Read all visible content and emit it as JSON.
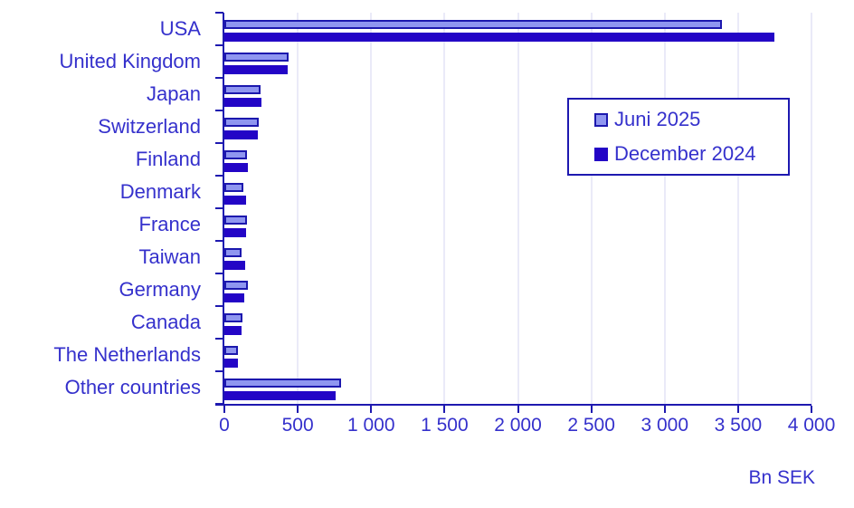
{
  "colors": {
    "background": "#FFFFFF",
    "series1_fill": "#8F96F0",
    "series1_border": "#1C18AE",
    "series2_fill": "#2305C6",
    "axis": "#1E19B0",
    "grid": "#EAEAF8",
    "text": "#3531CC"
  },
  "chart_data": {
    "type": "bar",
    "orientation": "horizontal",
    "title": "",
    "xlabel": "Bn SEK",
    "ylabel": "",
    "xlim": [
      0,
      4000
    ],
    "x_ticks": [
      0,
      500,
      1000,
      1500,
      2000,
      2500,
      3000,
      3500,
      4000
    ],
    "x_tick_labels": [
      "0",
      "500",
      "1 000",
      "1 500",
      "2 000",
      "2 500",
      "3 000",
      "3 500",
      "4 000"
    ],
    "grid": true,
    "legend_position": "inside-top-right",
    "categories": [
      "USA",
      "United Kingdom",
      "Japan",
      "Switzerland",
      "Finland",
      "Denmark",
      "France",
      "Taiwan",
      "Germany",
      "Canada",
      "The Netherlands",
      "Other countries"
    ],
    "series": [
      {
        "name": "Juni 2025",
        "values": [
          3390,
          440,
          245,
          235,
          155,
          130,
          155,
          120,
          160,
          125,
          95,
          795
        ]
      },
      {
        "name": "December 2024",
        "values": [
          3750,
          430,
          250,
          230,
          160,
          150,
          145,
          140,
          135,
          115,
          90,
          760
        ]
      }
    ]
  }
}
